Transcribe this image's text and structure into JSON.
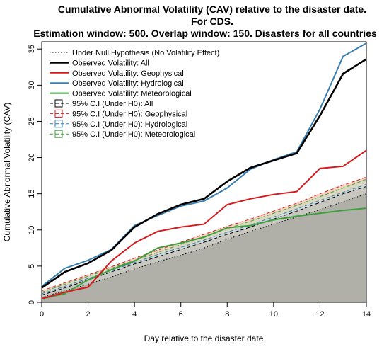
{
  "chart_data": {
    "type": "line",
    "title": [
      "Cumulative Abnormal Volatility (CAV) relative to the disaster date.",
      "For CDS.",
      "Estimation window: 500. Overlap window: 150. Disasters for all countries"
    ],
    "xlabel": "Day relative to the disaster date",
    "ylabel": "Cumulative Abnormal Volatility (CAV)",
    "xlim": [
      0,
      14
    ],
    "ylim": [
      0,
      36
    ],
    "x": [
      0,
      1,
      2,
      3,
      4,
      5,
      6,
      7,
      8,
      9,
      10,
      11,
      12,
      13,
      14
    ],
    "xticks": [
      "0",
      "2",
      "4",
      "6",
      "8",
      "10",
      "12",
      "14"
    ],
    "yticks": [
      "0",
      "5",
      "10",
      "15",
      "20",
      "25",
      "30",
      "35"
    ],
    "grid": false,
    "legend_position": "top-left",
    "series": [
      {
        "name": "Under Null Hypothesis (No Volatility Effect)",
        "style": "dotted",
        "color": "#000000",
        "values": [
          0.7,
          1.6,
          2.5,
          3.5,
          4.6,
          5.6,
          6.5,
          7.5,
          8.7,
          9.8,
          10.8,
          11.8,
          12.8,
          13.9,
          15.0
        ]
      },
      {
        "name": "Observed Volatility: All",
        "style": "solid",
        "color": "#000000",
        "values": [
          2.0,
          4.2,
          5.4,
          7.2,
          10.4,
          12.2,
          13.5,
          14.3,
          16.7,
          18.6,
          19.6,
          20.6,
          25.8,
          31.6,
          33.6
        ]
      },
      {
        "name": "Observed Volatility: Geophysical",
        "style": "solid",
        "color": "#d7191c",
        "values": [
          0.5,
          1.4,
          2.1,
          5.7,
          8.2,
          9.8,
          10.4,
          10.8,
          13.5,
          14.3,
          14.9,
          15.3,
          18.5,
          18.8,
          21.0
        ]
      },
      {
        "name": "Observed Volatility: Hydrological",
        "style": "solid",
        "color": "#3a7fb0",
        "values": [
          2.2,
          4.7,
          5.8,
          7.3,
          10.6,
          12.0,
          13.3,
          14.0,
          15.8,
          18.4,
          19.7,
          20.8,
          26.7,
          34.0,
          35.8
        ]
      },
      {
        "name": "Observed Volatility: Meteorological",
        "style": "solid",
        "color": "#3f9f3f",
        "values": [
          0.5,
          1.2,
          3.1,
          4.5,
          5.7,
          7.5,
          8.2,
          9.0,
          10.3,
          10.6,
          11.4,
          11.9,
          12.3,
          12.7,
          13.0
        ]
      },
      {
        "name": "95% C.I (Under H0): All",
        "style": "dashed",
        "color": "#000000",
        "values": [
          1.0,
          2.0,
          3.1,
          4.2,
          5.3,
          6.3,
          7.3,
          8.3,
          9.4,
          10.4,
          11.5,
          12.6,
          13.8,
          15.0,
          16.0
        ]
      },
      {
        "name": "95% C.I (Under H0): Geophysical",
        "style": "dashed",
        "color": "#d7191c",
        "values": [
          1.6,
          2.7,
          3.8,
          4.9,
          6.1,
          7.2,
          8.3,
          9.4,
          10.5,
          11.5,
          12.6,
          13.7,
          15.0,
          16.2,
          17.3
        ]
      },
      {
        "name": "95% C.I (Under H0): Hydrological",
        "style": "dashed",
        "color": "#3a7fb0",
        "values": [
          1.2,
          2.2,
          3.3,
          4.4,
          5.5,
          6.6,
          7.6,
          8.6,
          9.7,
          10.7,
          11.8,
          12.9,
          14.1,
          15.2,
          16.3
        ]
      },
      {
        "name": "95% C.I (Under H0): Meteorological",
        "style": "dashed",
        "color": "#3f9f3f",
        "values": [
          1.4,
          2.5,
          3.6,
          4.7,
          5.8,
          6.9,
          8.0,
          9.1,
          10.2,
          11.2,
          12.3,
          13.4,
          14.6,
          15.8,
          17.0
        ]
      }
    ]
  }
}
